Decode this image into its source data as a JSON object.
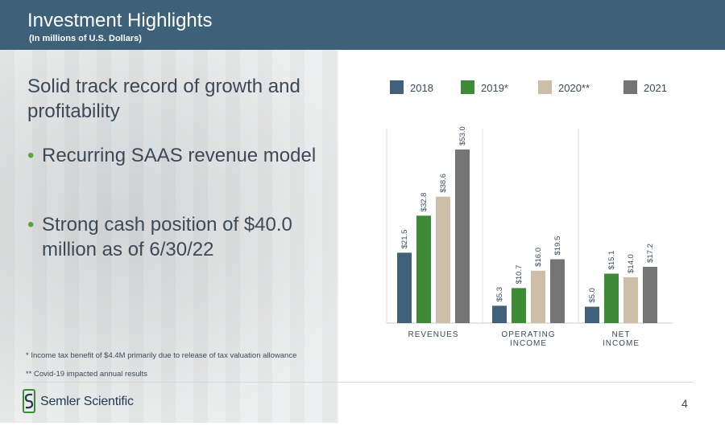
{
  "header": {
    "title": "Investment Highlights",
    "subtitle": "(In millions of U.S. Dollars)"
  },
  "left": {
    "headline": "Solid track record of growth and profitability",
    "bullets": [
      "Recurring SAAS revenue model",
      "Strong cash position of $40.0 million as of 6/30/22"
    ],
    "bullet_marker": "•"
  },
  "footnotes": [
    "* Income tax benefit of $4.4M primarily due to release of tax valuation allowance",
    "** Covid-19 impacted annual results"
  ],
  "footer": {
    "company": "Semler Scientific",
    "page_number": "4"
  },
  "colors": {
    "header": "#3d6179",
    "2018": "#41607a",
    "2019": "#3e8a37",
    "2020": "#cdbfa7",
    "2021": "#757575"
  },
  "chart_data": {
    "type": "bar",
    "title": "",
    "categories": [
      "REVENUES",
      "OPERATING INCOME",
      "NET INCOME"
    ],
    "series": [
      {
        "name": "2018",
        "color": "#41607a",
        "values": [
          21.5,
          5.3,
          5.0
        ],
        "labels": [
          "$21.5",
          "$5.3",
          "$5.0"
        ]
      },
      {
        "name": "2019*",
        "color": "#3e8a37",
        "values": [
          32.8,
          10.7,
          15.1
        ],
        "labels": [
          "$32.8",
          "$10.7",
          "$15.1"
        ]
      },
      {
        "name": "2020**",
        "color": "#cdbfa7",
        "values": [
          38.6,
          16.0,
          14.0
        ],
        "labels": [
          "$38.6",
          "$16.0",
          "$14.0"
        ]
      },
      {
        "name": "2021",
        "color": "#757575",
        "values": [
          53.0,
          19.5,
          17.2
        ],
        "labels": [
          "$53.0",
          "$19.5",
          "$17.2"
        ]
      }
    ],
    "ylim": [
      0,
      53
    ],
    "grid": false,
    "legend": "top"
  }
}
